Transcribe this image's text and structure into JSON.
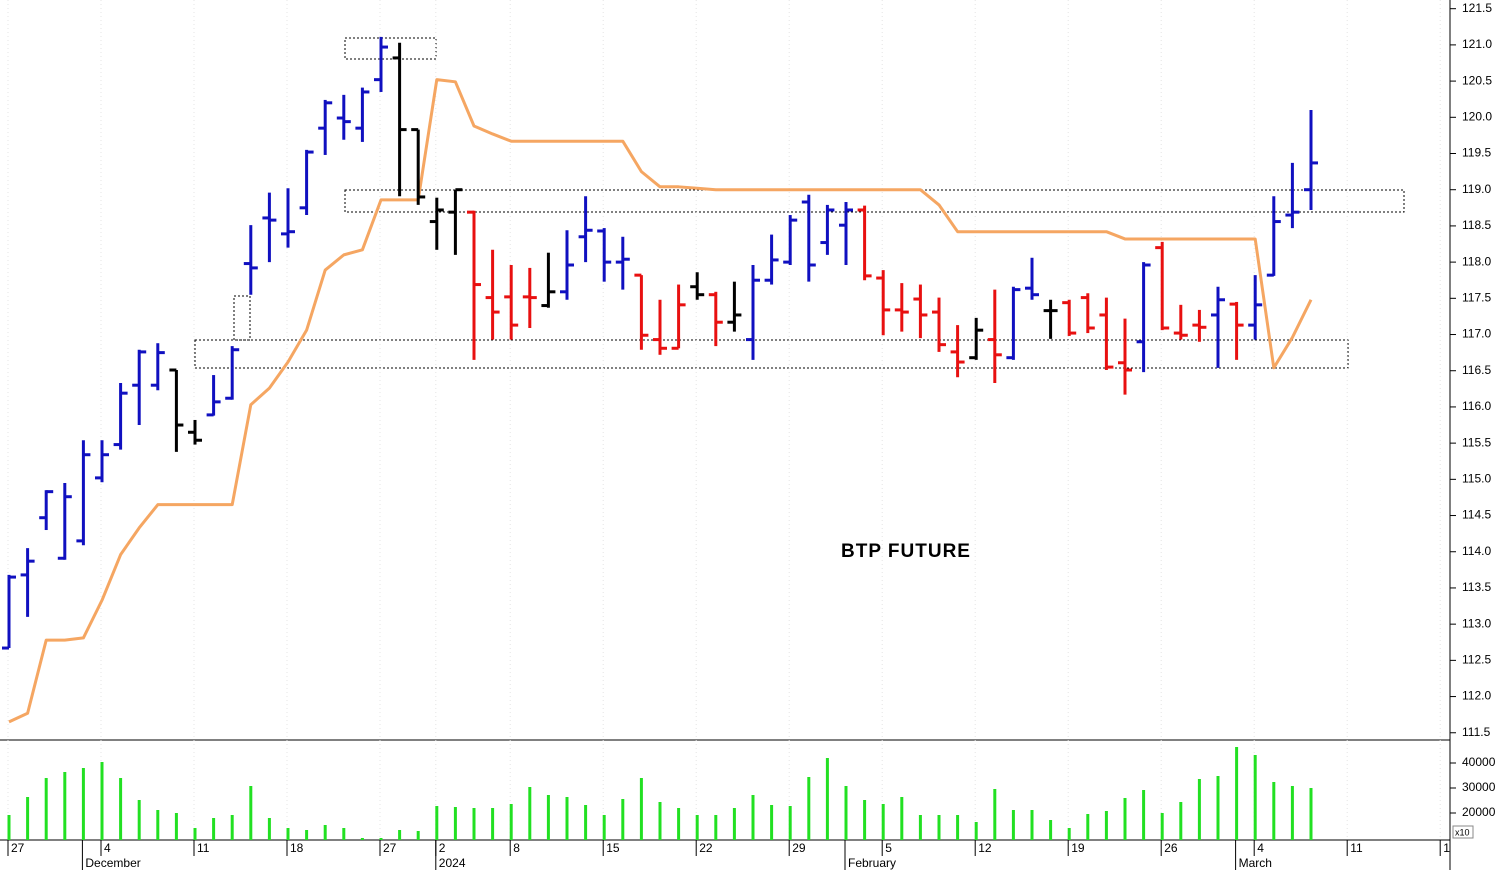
{
  "chart_data": {
    "type": "ohlc",
    "title": "BTP FUTURE",
    "categories": [
      "27",
      null,
      null,
      null,
      null,
      "4",
      null,
      null,
      null,
      null,
      "11",
      null,
      null,
      null,
      null,
      "18",
      null,
      null,
      null,
      null,
      "27",
      null,
      null,
      "2",
      null,
      null,
      null,
      "8",
      null,
      null,
      null,
      null,
      "15",
      null,
      null,
      null,
      null,
      "22",
      null,
      null,
      null,
      null,
      "29",
      null,
      null,
      null,
      null,
      "5",
      null,
      null,
      null,
      null,
      "12",
      null,
      null,
      null,
      null,
      "19",
      null,
      null,
      null,
      null,
      "26",
      null,
      null,
      null,
      null,
      "4",
      null,
      null,
      null,
      null,
      "11",
      null,
      null,
      null,
      null,
      "1"
    ],
    "month_labels": [
      null,
      null,
      null,
      null,
      "December",
      null,
      null,
      null,
      null,
      null,
      null,
      null,
      null,
      null,
      null,
      null,
      null,
      null,
      null,
      null,
      null,
      null,
      null,
      "2024",
      null,
      null,
      null,
      null,
      null,
      null,
      null,
      null,
      null,
      null,
      null,
      null,
      null,
      null,
      null,
      null,
      null,
      null,
      null,
      null,
      null,
      "February",
      null,
      null,
      null,
      null,
      null,
      null,
      null,
      null,
      null,
      null,
      null,
      null,
      null,
      null,
      null,
      null,
      null,
      null,
      null,
      null,
      "March",
      null,
      null,
      null,
      null,
      null,
      null,
      null,
      null,
      null,
      null,
      null
    ],
    "open": [
      112.67,
      113.68,
      114.47,
      113.91,
      114.15,
      115.02,
      115.48,
      116.3,
      116.3,
      116.51,
      115.65,
      115.89,
      116.12,
      117.98,
      118.61,
      118.39,
      118.75,
      119.85,
      119.99,
      119.85,
      120.52,
      120.82,
      119.83,
      118.56,
      118.69,
      118.69,
      117.51,
      117.52,
      117.52,
      117.4,
      117.59,
      118.35,
      118.43,
      118.0,
      117.82,
      116.93,
      116.81,
      117.66,
      117.55,
      117.17,
      116.93,
      117.75,
      118.0,
      118.83,
      118.27,
      118.51,
      118.72,
      117.78,
      117.34,
      117.49,
      117.31,
      116.76,
      116.68,
      116.93,
      116.68,
      117.64,
      117.33,
      117.44,
      117.51,
      117.27,
      116.61,
      116.9,
      118.2,
      117.02,
      117.13,
      117.27,
      117.42,
      117.13,
      117.82,
      118.65,
      119.0,
      null,
      null,
      null,
      null,
      null,
      null,
      null
    ],
    "high": [
      113.68,
      114.05,
      114.85,
      114.95,
      115.54,
      115.54,
      116.33,
      116.79,
      116.88,
      116.51,
      115.82,
      116.44,
      116.84,
      118.51,
      118.96,
      119.02,
      119.55,
      120.24,
      120.31,
      120.41,
      121.11,
      121.03,
      119.83,
      118.89,
      119.0,
      118.71,
      118.17,
      117.96,
      117.92,
      118.13,
      118.44,
      118.91,
      118.47,
      118.35,
      117.82,
      117.48,
      117.69,
      117.86,
      117.59,
      117.73,
      117.96,
      118.38,
      118.65,
      118.93,
      118.79,
      118.83,
      118.78,
      117.89,
      117.71,
      117.69,
      117.51,
      117.13,
      117.23,
      117.62,
      117.66,
      118.06,
      117.48,
      117.48,
      117.57,
      117.51,
      117.22,
      118.0,
      118.28,
      117.41,
      117.34,
      117.66,
      117.45,
      117.82,
      118.91,
      119.37,
      120.1,
      null,
      null,
      null,
      null,
      null,
      null,
      null
    ],
    "low": [
      112.67,
      113.1,
      114.3,
      113.89,
      114.09,
      114.96,
      115.41,
      115.75,
      116.23,
      115.38,
      115.48,
      115.88,
      116.1,
      117.55,
      118.0,
      118.2,
      118.65,
      119.48,
      119.69,
      119.66,
      120.35,
      118.91,
      118.79,
      118.17,
      118.1,
      116.65,
      116.93,
      116.93,
      117.09,
      117.37,
      117.48,
      118.0,
      117.73,
      117.62,
      116.79,
      116.72,
      116.81,
      117.48,
      116.84,
      117.04,
      116.65,
      117.69,
      117.96,
      117.73,
      118.1,
      117.96,
      117.75,
      116.99,
      117.04,
      116.95,
      116.76,
      116.41,
      116.65,
      116.33,
      116.65,
      117.48,
      116.94,
      116.98,
      117.02,
      116.51,
      116.17,
      116.48,
      117.06,
      116.93,
      116.9,
      116.54,
      116.65,
      116.93,
      117.81,
      118.47,
      118.72,
      null,
      null,
      null,
      null,
      null,
      null,
      null
    ],
    "close": [
      113.65,
      113.87,
      114.83,
      114.76,
      115.34,
      115.34,
      116.19,
      116.76,
      116.75,
      115.75,
      115.54,
      116.07,
      116.79,
      117.92,
      118.58,
      118.42,
      119.52,
      120.2,
      119.94,
      120.35,
      120.97,
      119.83,
      118.9,
      118.72,
      119.0,
      117.69,
      117.31,
      117.13,
      117.51,
      117.59,
      117.96,
      118.44,
      118.0,
      118.04,
      116.99,
      116.81,
      117.41,
      117.55,
      117.17,
      117.27,
      117.75,
      118.03,
      118.58,
      117.96,
      118.72,
      118.72,
      117.81,
      117.34,
      117.31,
      117.27,
      116.86,
      116.62,
      117.06,
      116.72,
      117.62,
      117.55,
      117.33,
      117.02,
      117.09,
      116.55,
      116.51,
      117.96,
      117.09,
      116.99,
      117.1,
      117.48,
      117.13,
      117.41,
      118.56,
      118.69,
      119.37,
      null,
      null,
      null,
      null,
      null,
      null,
      null
    ],
    "bar_colors": [
      "#1010c0",
      "#1010c0",
      "#1010c0",
      "#1010c0",
      "#1010c0",
      "#1010c0",
      "#1010c0",
      "#1010c0",
      "#1010c0",
      "#000000",
      "#000000",
      "#1010c0",
      "#1010c0",
      "#1010c0",
      "#1010c0",
      "#1010c0",
      "#1010c0",
      "#1010c0",
      "#1010c0",
      "#1010c0",
      "#1010c0",
      "#000000",
      "#000000",
      "#000000",
      "#000000",
      "#e81010",
      "#e81010",
      "#e81010",
      "#e81010",
      "#000000",
      "#1010c0",
      "#1010c0",
      "#1010c0",
      "#1010c0",
      "#e81010",
      "#e81010",
      "#e81010",
      "#000000",
      "#e81010",
      "#000000",
      "#1010c0",
      "#1010c0",
      "#1010c0",
      "#1010c0",
      "#1010c0",
      "#1010c0",
      "#e81010",
      "#e81010",
      "#e81010",
      "#e81010",
      "#e81010",
      "#e81010",
      "#000000",
      "#e81010",
      "#1010c0",
      "#1010c0",
      "#000000",
      "#e81010",
      "#e81010",
      "#e81010",
      "#e81010",
      "#1010c0",
      "#e81010",
      "#e81010",
      "#e81010",
      "#1010c0",
      "#e81010",
      "#1010c0",
      "#1010c0",
      "#1010c0",
      "#1010c0",
      null,
      null,
      null,
      null,
      null,
      null,
      null
    ],
    "stop": {
      "color": "#f5a662",
      "values": [
        111.65,
        111.77,
        112.78,
        112.78,
        112.81,
        113.33,
        113.96,
        114.33,
        114.65,
        114.65,
        114.65,
        114.65,
        114.65,
        116.03,
        116.26,
        116.62,
        117.06,
        117.89,
        118.1,
        118.17,
        118.86,
        118.86,
        118.86,
        120.52,
        120.49,
        119.88,
        119.77,
        119.67,
        119.67,
        119.67,
        119.67,
        119.67,
        119.67,
        119.67,
        119.25,
        119.04,
        119.04,
        119.02,
        119.0,
        119.0,
        119.0,
        119.0,
        119.0,
        119.0,
        119.0,
        119.0,
        119.0,
        119.0,
        119.0,
        119.0,
        118.79,
        118.42,
        118.42,
        118.42,
        118.42,
        118.42,
        118.42,
        118.42,
        118.42,
        118.42,
        118.32,
        118.32,
        118.32,
        118.32,
        118.32,
        118.32,
        118.32,
        118.32,
        116.54,
        116.96,
        117.48,
        null,
        null,
        null,
        null,
        null,
        null,
        null
      ]
    },
    "ylim": [
      111.4,
      121.62
    ],
    "yticks": [
      111.5,
      {
        "value": 112,
        "label": "112.0"
      },
      112.5,
      {
        "value": 113,
        "label": "113.0"
      },
      113.5,
      {
        "value": 114,
        "label": "114.0"
      },
      114.5,
      {
        "value": 115,
        "label": "115.0"
      },
      115.5,
      {
        "value": 116,
        "label": "116.0"
      },
      116.5,
      {
        "value": 117,
        "label": "117.0"
      },
      117.5,
      {
        "value": 118,
        "label": "118.0"
      },
      118.5,
      {
        "value": 119,
        "label": "119.0"
      },
      119.5,
      {
        "value": 120,
        "label": "120.0"
      },
      120.5,
      {
        "value": 121,
        "label": "121.0"
      },
      121.5
    ],
    "volume": {
      "type": "bar",
      "color": "#22e022",
      "unit_label": "x10",
      "values": [
        19200,
        26400,
        34000,
        36400,
        38000,
        40400,
        34000,
        25200,
        21200,
        20000,
        14000,
        18000,
        19200,
        30800,
        18000,
        14000,
        13200,
        15200,
        14000,
        10000,
        10000,
        13200,
        12800,
        22800,
        22400,
        22000,
        22000,
        23600,
        30400,
        27200,
        26400,
        23200,
        19200,
        25600,
        34000,
        24400,
        22000,
        19200,
        19200,
        22000,
        27200,
        23200,
        22800,
        34400,
        42000,
        30800,
        25200,
        23600,
        26400,
        19200,
        19200,
        19200,
        16400,
        29600,
        21200,
        21200,
        17200,
        14000,
        19600,
        20800,
        26000,
        29200,
        20000,
        24400,
        33600,
        34800,
        46400,
        43200,
        32400,
        30800,
        30000,
        null,
        null,
        null,
        null,
        null,
        null,
        null
      ],
      "ylim": [
        9200,
        49200
      ],
      "yticks": [
        20000,
        30000,
        40000
      ]
    }
  }
}
